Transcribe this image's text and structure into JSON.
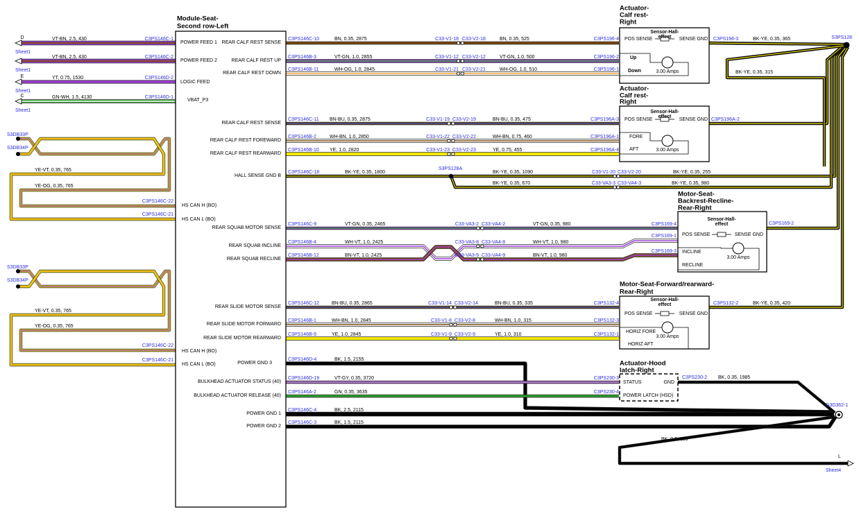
{
  "module": {
    "title": [
      "Module-Seat-",
      "Second row-Left"
    ],
    "feeds": [
      "POWER FEED 1",
      "POWER FEED 2",
      "LOGIC FEED",
      "VBAT_P3"
    ],
    "can_pins": [
      "HS CAN H (BO)",
      "HS CAN L (BO)",
      "HS CAN H (BO)",
      "HS CAN L (BO)"
    ]
  },
  "left_feeds": [
    {
      "letter": "D",
      "wire": "VT-BN, 2.5, 430",
      "connector": "C3PS146C-1",
      "sheet": "Sheet1"
    },
    {
      "wire": "VT-BN, 2.5, 430",
      "connector": "C3PS146C-2",
      "sheet": "Sheet1"
    },
    {
      "letter": "E",
      "wire": "YT, 0.75, 1530",
      "connector": "C3PS146D-2",
      "sheet": "Sheet1"
    },
    {
      "letter": "C",
      "wire": "GN-WH, 1.5, 4130",
      "connector": "C3PS146D-1",
      "sheet": "Sheet1"
    }
  ],
  "can_groups": [
    {
      "splices": [
        "S3DB33P",
        "S3DB34P"
      ],
      "wires": [
        "YE-VT, 0.35, 765",
        "YE-OG, 0.35, 765"
      ],
      "connectors": [
        "C3PS146C-22",
        "C3PS146C-21"
      ]
    },
    {
      "splices": [
        "S3DB33P",
        "S3DB34P"
      ],
      "wires": [
        "YE-VT, 0.35, 765",
        "YE-OG, 0.35, 765"
      ],
      "connectors": [
        "C3PS146C-22",
        "C3PS146C-21"
      ]
    }
  ],
  "rows": [
    {
      "pin": "REAR CALF REST SENSE",
      "from": "C3PS146C-10",
      "wire1": "BN, 0.35, 2875",
      "inline_a": "C33-V1-18",
      "inline_b": "C33-V2-18",
      "wire2": "BN, 0.35, 525",
      "to": "C3PS196-4"
    },
    {
      "pin": "REAR CALF REST UP",
      "from": "C3PS146B-3",
      "wire1": "VT-GN, 1.0, 2855",
      "inline_a": "C33-V1-12",
      "inline_b": "C33-V2-12",
      "wire2": "VT-GN, 1.0, 500",
      "to": "C3PS196-2"
    },
    {
      "pin": "REAR CALF REST DOWN",
      "from": "C3PS146B-11",
      "wire1": "WH-OG, 1.0, 2845",
      "inline_a": "C33-V1-21",
      "inline_b": "C33-V2-21",
      "wire2": "WH-OG, 1.0, 510",
      "to": "C3PS196-1"
    },
    {
      "pin": "REAR CALF REST SENSE",
      "from": "C3PS146C-11",
      "wire1": "BN-BU, 0.35, 2875",
      "inline_a": "C33-V1-19",
      "inline_b": "C33-V2-19",
      "wire2": "BN-BU, 0.35, 475",
      "to": "C3PS196A-3"
    },
    {
      "pin": "REAR CALF REST FOREWARD",
      "from": "C3PS146B-2",
      "wire1": "WH-BN, 1.0, 2850",
      "inline_a": "C33-V1-22",
      "inline_b": "C33-V2-22",
      "wire2": "WH-BN, 0.75, 460",
      "to": "C3PS196A-1"
    },
    {
      "pin": "REAR CALF REST REARWARD",
      "from": "C3PS146B-10",
      "wire1": "YE, 1.0, 2820",
      "inline_a": "C33-V1-23",
      "inline_b": "C33-V2-23",
      "wire2": "YE, 0.75, 455",
      "to": "C3PS196A-4"
    },
    {
      "pin": "HALL SENSE GND B",
      "from": "C3PS146C-18",
      "wire1": "BK-YE, 0.35, 1800",
      "splice": "S3PS128A",
      "wire2": "BK-YE, 0.35, 1090",
      "inline_a": "C33-V1-20",
      "inline_b": "C33-V2-20",
      "wire3": "BK-YE, 0.35, 255",
      "branch": {
        "wire1": "BK-YE, 0.35, 670",
        "inline_a": "C33-VA3-3",
        "inline_b": "C33-VA4-3",
        "wire2": "BK-YE, 0.35, 980"
      }
    },
    {
      "pin": "REAR SQUAB MOTOR SENSE",
      "from": "C3PS146C-9",
      "wire1": "VT-GN, 0.35, 2465",
      "inline_a": "C33-VA3-2",
      "inline_b": "C33-VA4-2",
      "wire2": "VT-GN, 0.35, 980",
      "to": "C3PS169-4"
    },
    {
      "pin": "REAR SQUAB INCLINE",
      "from": "C3PS146B-4",
      "wire1": "WH-VT, 1.0, 2425",
      "inline_a": "C33-VA3-8",
      "inline_b": "C33-VA4-8",
      "wire2": "WH-VT, 1.0, 980",
      "to": "C3PS169-1"
    },
    {
      "pin": "REAR SQUAB RECLINE",
      "from": "C3PS146B-12",
      "wire1": "BN-VT, 1.0, 2425",
      "inline_a": "C33-VA3-9",
      "inline_b": "C33-VA4-9",
      "wire2": "BN-VT, 1.0, 980",
      "to": "C3PS169-3"
    },
    {
      "pin": "REAR SLIDE MOTOR SENSE",
      "from": "C3PS146C-12",
      "wire1": "BN-BU, 0.35, 2865",
      "inline_a": "C33-V1-14",
      "inline_b": "C33-V2-14",
      "wire2": "BN-BU, 0.35, 335",
      "to": "C3PS132-4"
    },
    {
      "pin": "REAR SLIDE MOTOR FORWARD",
      "from": "C3PS146B-1",
      "wire1": "WH-BN, 1.0, 2845",
      "inline_a": "C33-V1-8",
      "inline_b": "C33-V2-8",
      "wire2": "WH-BN, 1.0, 315",
      "to": "C3PS132-3"
    },
    {
      "pin": "REAR SLIDE MOTOR REARWARD",
      "from": "C3PS146B-9",
      "wire1": "YE, 1.0, 2845",
      "inline_a": "C33-V1-9",
      "inline_b": "C33-V2-9",
      "wire2": "YE, 1.0, 310",
      "to": "C3PS132-1"
    },
    {
      "pin": "POWER GND 3",
      "from": "C3PS146D-4",
      "wire1": "BK, 1.5, 2155"
    },
    {
      "pin": "BULKHEAD ACTUATOR STATUS (40)",
      "from": "C3PS146D-19",
      "wire1": "VT-GY, 0.35, 3720",
      "to": "C3PS230-3"
    },
    {
      "pin": "BULKHEAD ACTUATOR RELEASE (40)",
      "from": "C3PS146A-2",
      "wire1": "GN, 0.35, 3635",
      "to": "C3PS230-4"
    },
    {
      "pin": "POWER GND 1",
      "from": "C3PS146C-4",
      "wire1": "BK, 2.5, 2115"
    },
    {
      "pin": "POWER GND 2",
      "from": "C3PS146C-3",
      "wire1": "BK, 1.5, 2115"
    }
  ],
  "components": [
    {
      "title": [
        "Actuator-",
        "Calf rest-",
        "Right"
      ],
      "labels": [
        "POS SENSE",
        "Sensor-Hall-",
        "effect",
        "SENSE GND",
        "Up",
        "Down",
        "3.00 Amps"
      ],
      "connector": "C3PS196-3",
      "wire": "BK-YE, 0.35, 365"
    },
    {
      "title": [
        "Actuator-",
        "Calf rest-",
        "Right"
      ],
      "labels": [
        "POS SENSE",
        "Sensor-Hall-",
        "effect",
        "SENSE GND",
        "FORE",
        "AFT",
        "3.00 Amps"
      ],
      "connector": "C3PS196A-2"
    },
    {
      "title": [
        "Motor-Seat-",
        "Backrest-Recline-",
        "Rear-Right"
      ],
      "labels": [
        "POS SENSE",
        "Sensor-Hall-",
        "effect",
        "SENSE GND",
        "INCLINE",
        "RECLINE",
        "3.00 Amps"
      ],
      "connector": "C3PS169-2"
    },
    {
      "title": [
        "Motor-Seat-Forward/rearward-",
        "Rear-Right"
      ],
      "labels": [
        "POS SENSE",
        "Sensor-Hall-",
        "effect",
        "SENSE GND",
        "HORIZ FORE",
        "HORIZ AFT",
        "3.00 Amps"
      ],
      "connector": "C3PS132-2",
      "wire": "BK-YE, 0.35, 420"
    },
    {
      "title": [
        "Actuator-Hood",
        "latch-Right"
      ],
      "labels": [
        "STATUS",
        "GND",
        "POWER LATCH (HSD)"
      ],
      "connector": "C3PS230-2",
      "wire": "BK, 0.35, 1985"
    }
  ],
  "ground": {
    "splice": "S3PS128",
    "wire": "BK-YE, 0.35, 315",
    "ground": "G3D362-1",
    "sheet_wire": "BK, 0.5, 925",
    "sheet_letter": "L",
    "sheet": "Sheet4"
  }
}
